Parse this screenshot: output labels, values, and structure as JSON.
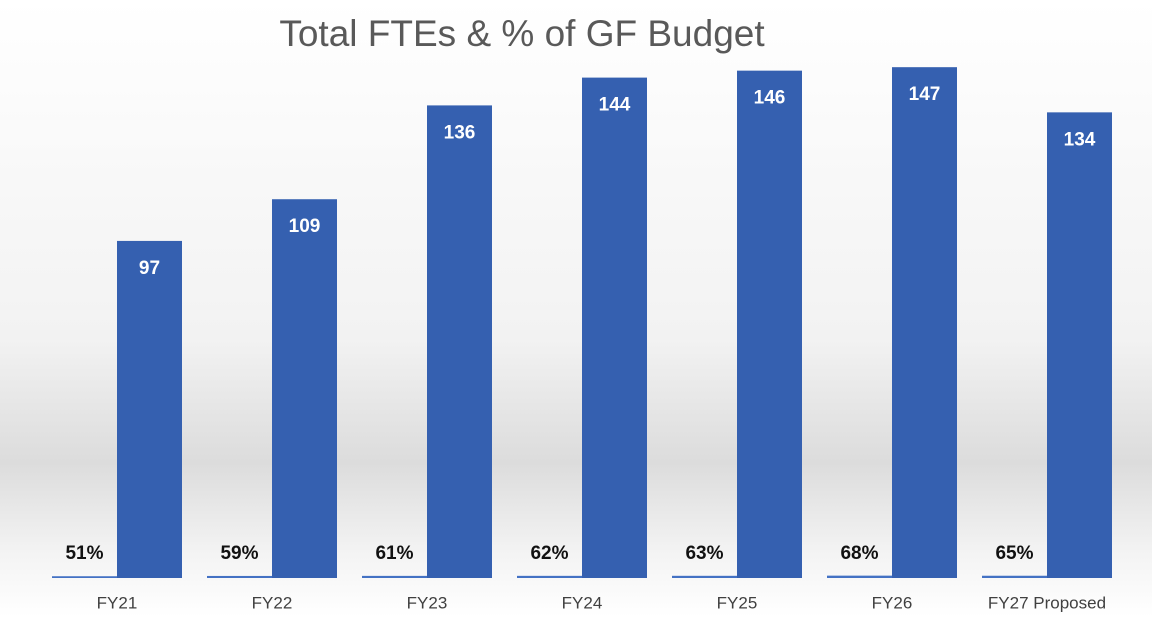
{
  "chart_data": {
    "type": "bar",
    "title": "Total FTEs & % of GF Budget",
    "categories": [
      "FY21",
      "FY22",
      "FY23",
      "FY24",
      "FY25",
      "FY26",
      "FY27 Proposed"
    ],
    "series": [
      {
        "color": "#4472c4",
        "values": [
          0.51,
          0.59,
          0.61,
          0.62,
          0.63,
          0.68,
          0.65
        ],
        "value_labels": [
          "51%",
          "59%",
          "61%",
          "62%",
          "63%",
          "68%",
          "65%"
        ]
      },
      {
        "color": "#3560b0",
        "values": [
          97,
          109,
          136,
          144,
          146,
          147,
          134
        ]
      }
    ],
    "ylim": [
      0,
      160
    ],
    "grid": false
  }
}
